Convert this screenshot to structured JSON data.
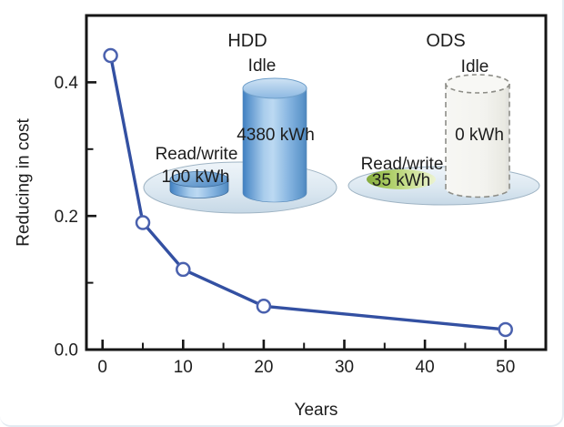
{
  "chart_data": {
    "type": "line",
    "title": "",
    "xlabel": "Years",
    "ylabel": "Reducing in cost",
    "x": [
      1,
      5,
      10,
      20,
      50
    ],
    "y": [
      0.44,
      0.19,
      0.12,
      0.065,
      0.03
    ],
    "xlim": [
      -2,
      55
    ],
    "ylim": [
      0,
      0.5
    ],
    "x_ticks": {
      "major": [
        0,
        10,
        20,
        30,
        40,
        50
      ],
      "labels": [
        "0",
        "10",
        "20",
        "30",
        "40",
        "50"
      ],
      "minor": [
        5,
        15,
        25,
        35,
        45
      ]
    },
    "y_ticks": {
      "major": [
        0,
        0.2,
        0.4
      ],
      "labels": [
        "0.0",
        "0.2",
        "0.4"
      ],
      "minor": [
        0.1,
        0.3
      ]
    },
    "grid": false,
    "legend": null,
    "line_color": "#3350a2",
    "marker": {
      "shape": "circle-open",
      "fill": "#ffffff",
      "stroke": "#4a61ae"
    }
  },
  "inset": {
    "hdd": {
      "title": "HDD",
      "idle_label": "Idle",
      "idle_value": "4380 kWh",
      "readwrite_label": "Read/write",
      "readwrite_value": "100 kWh"
    },
    "ods": {
      "title": "ODS",
      "idle_label": "Idle",
      "idle_value": "0 kWh",
      "readwrite_label": "Read/write",
      "readwrite_value": "35 kWh"
    }
  },
  "colors": {
    "axis": "#161616",
    "text": "#1d1d1d",
    "line": "#3350a2",
    "marker_stroke": "#4a61ae",
    "hdd_cylinder_mid": "#5b9bd5",
    "ods_highlight": "#8fbe3f",
    "platform": "#d9e5ee"
  }
}
